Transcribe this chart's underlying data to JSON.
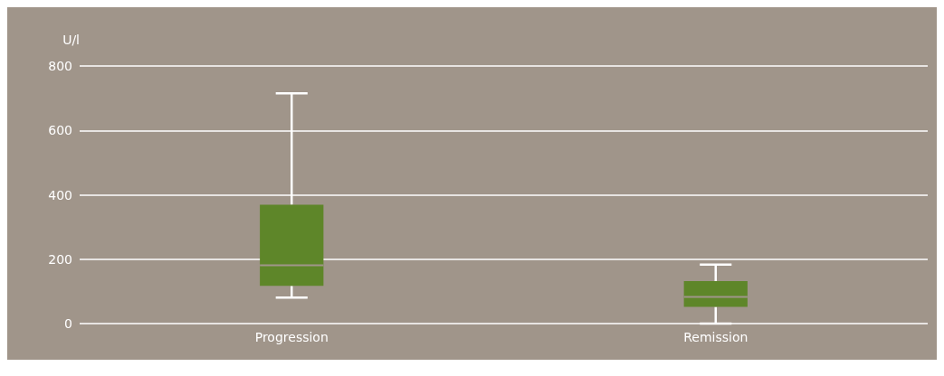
{
  "chart_data": {
    "type": "box",
    "ylabel": "U/l",
    "categories": [
      "Progression",
      "Remission"
    ],
    "boxes": [
      {
        "low": 81,
        "q1": 117,
        "median": 181,
        "q3": 369,
        "high": 715
      },
      {
        "low": 0,
        "q1": 52,
        "median": 83,
        "q3": 132,
        "high": 183
      }
    ],
    "color": "#5e8629",
    "ylim": [
      0,
      800
    ],
    "yticks": [
      0,
      200,
      400,
      600,
      800
    ],
    "grid": "y"
  }
}
